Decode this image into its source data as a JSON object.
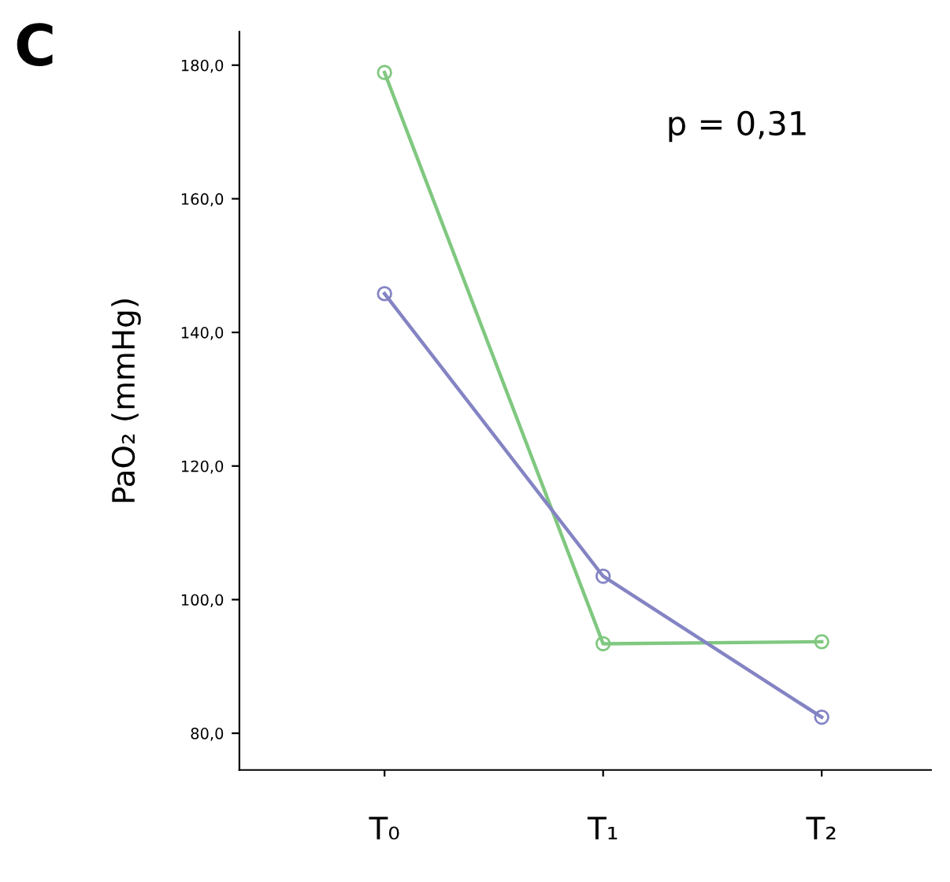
{
  "chart_data": {
    "type": "line",
    "title": "C",
    "ylabel": "PaO₂ (mmHg)",
    "categories": [
      "T₀",
      "T₁",
      "T₂"
    ],
    "series": [
      {
        "color": "#80c880",
        "values": [
          178.9,
          93.4,
          93.7
        ]
      },
      {
        "color": "#8484c4",
        "values": [
          145.8,
          103.5,
          82.4
        ]
      }
    ],
    "ylim": [
      74.5,
      185
    ],
    "yticks": [
      {
        "value": 80,
        "label": "80,0"
      },
      {
        "value": 100,
        "label": "100,0"
      },
      {
        "value": 120,
        "label": "120,0"
      },
      {
        "value": 140,
        "label": "140,0"
      },
      {
        "value": 160,
        "label": "160,0"
      },
      {
        "value": 180,
        "label": "180,0"
      }
    ],
    "annotations": [
      "p = 0,31"
    ],
    "marker": "circle",
    "line_style": "solid",
    "grid": false,
    "legend": false
  }
}
